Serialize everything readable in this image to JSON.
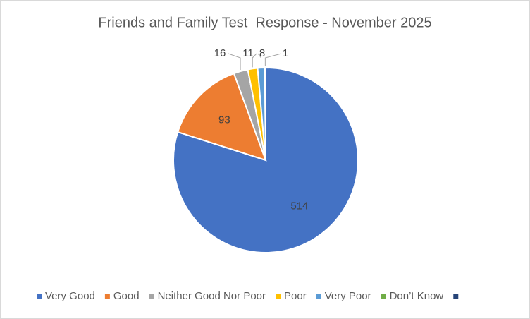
{
  "chart_data": {
    "type": "pie",
    "title": "Friends and Family Test  Response - November 2025",
    "categories": [
      "Very Good",
      "Good",
      "Neither Good Nor Poor",
      "Poor",
      "Very Poor",
      "Don’t Know",
      null
    ],
    "values": [
      514,
      93,
      16,
      11,
      8,
      1,
      0
    ],
    "colors": [
      "#4472c4",
      "#ed7d31",
      "#a5a5a5",
      "#ffc000",
      "#5b9bd5",
      "#70ad47",
      "#264478"
    ],
    "legend": "bottom"
  }
}
